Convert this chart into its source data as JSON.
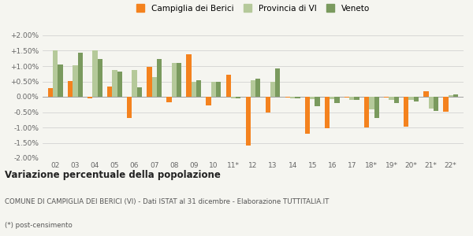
{
  "years": [
    "02",
    "03",
    "04",
    "05",
    "06",
    "07",
    "08",
    "09",
    "10",
    "11*",
    "12",
    "13",
    "14",
    "15",
    "16",
    "17",
    "18*",
    "19*",
    "20*",
    "21*",
    "22*"
  ],
  "campiglia": [
    0.28,
    0.52,
    -0.05,
    0.33,
    -0.7,
    0.97,
    -0.18,
    1.38,
    -0.28,
    0.72,
    -1.6,
    -0.52,
    -0.02,
    -1.2,
    -1.02,
    -0.02,
    -1.0,
    -0.02,
    -0.98,
    0.18,
    -0.48
  ],
  "provincia": [
    1.5,
    1.03,
    1.5,
    0.87,
    0.87,
    0.65,
    1.1,
    0.5,
    0.5,
    -0.05,
    0.55,
    0.5,
    -0.05,
    -0.08,
    -0.08,
    -0.1,
    -0.4,
    -0.1,
    -0.1,
    -0.38,
    0.05
  ],
  "veneto": [
    1.05,
    1.43,
    1.22,
    0.82,
    0.3,
    1.22,
    1.1,
    0.55,
    0.5,
    -0.05,
    0.58,
    0.92,
    -0.05,
    -0.3,
    -0.2,
    -0.1,
    -0.68,
    -0.2,
    -0.15,
    -0.45,
    0.07
  ],
  "color_campiglia": "#f4821e",
  "color_provincia": "#b5c99a",
  "color_veneto": "#7a9a5e",
  "title": "Variazione percentuale della popolazione",
  "subtitle": "COMUNE DI CAMPIGLIA DEI BERICI (VI) - Dati ISTAT al 31 dicembre - Elaborazione TUTTITALIA.IT",
  "footnote": "(*) post-censimento",
  "legend_labels": [
    "Campiglia dei Berici",
    "Provincia di VI",
    "Veneto"
  ],
  "ylim": [
    -2.0,
    2.0
  ],
  "yticks": [
    -2.0,
    -1.5,
    -1.0,
    -0.5,
    0.0,
    0.5,
    1.0,
    1.5,
    2.0
  ],
  "ytick_labels": [
    "-2.00%",
    "-1.50%",
    "-1.00%",
    "-0.50%",
    "0.00%",
    "+0.50%",
    "+1.00%",
    "+1.50%",
    "+2.00%"
  ],
  "bg_color": "#f5f5f0",
  "bar_width": 0.25,
  "figsize": [
    6.0,
    3.0
  ],
  "dpi": 100
}
